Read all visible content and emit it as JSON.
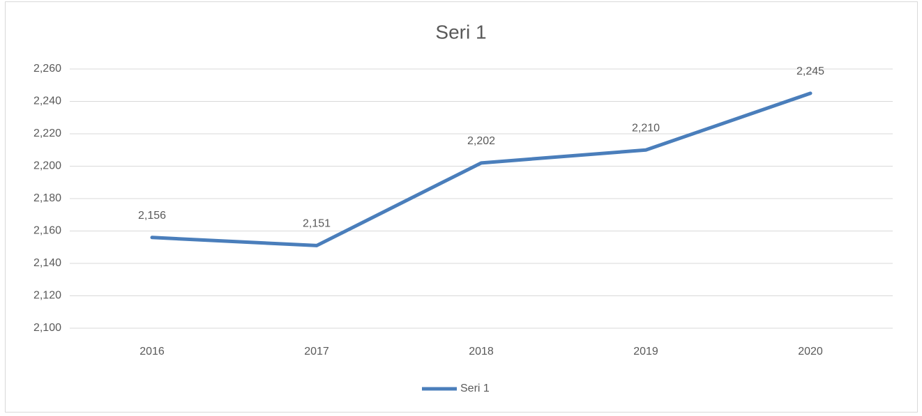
{
  "chart_data": {
    "type": "line",
    "title": "Seri 1",
    "categories": [
      "2016",
      "2017",
      "2018",
      "2019",
      "2020"
    ],
    "series": [
      {
        "name": "Seri 1",
        "color": "#4a7ebb",
        "values": [
          2156,
          2151,
          2202,
          2210,
          2245
        ],
        "value_labels": [
          "2,156",
          "2,151",
          "2,202",
          "2,210",
          "2,245"
        ]
      }
    ],
    "ylim": [
      2100,
      2260
    ],
    "yticks": [
      {
        "value": 2100,
        "label": "2,100"
      },
      {
        "value": 2120,
        "label": "2,120"
      },
      {
        "value": 2140,
        "label": "2,140"
      },
      {
        "value": 2160,
        "label": "2,160"
      },
      {
        "value": 2180,
        "label": "2,180"
      },
      {
        "value": 2200,
        "label": "2,200"
      },
      {
        "value": 2220,
        "label": "2,220"
      },
      {
        "value": 2240,
        "label": "2,240"
      },
      {
        "value": 2260,
        "label": "2,260"
      }
    ],
    "grid": true,
    "legend": "bottom"
  }
}
